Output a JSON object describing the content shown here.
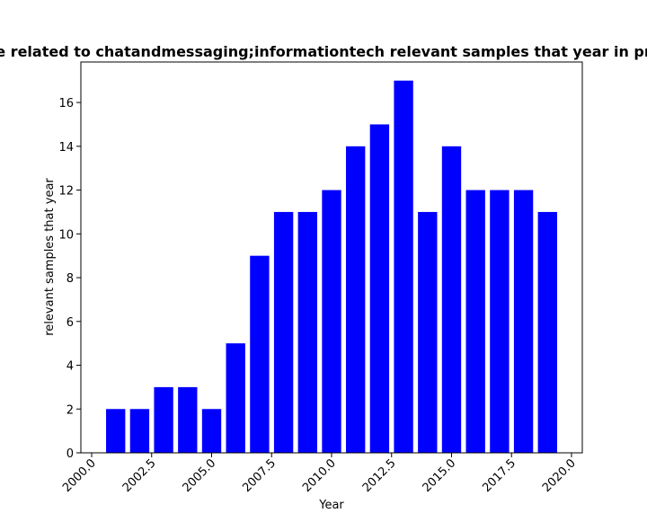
{
  "chart_data": {
    "type": "bar",
    "title": "e related to chatandmessaging;informationtech relevant samples that year in pr",
    "xlabel": "Year",
    "ylabel": "relevant samples that year",
    "x": [
      2001,
      2002,
      2003,
      2004,
      2005,
      2006,
      2007,
      2008,
      2009,
      2010,
      2011,
      2012,
      2013,
      2014,
      2015,
      2016,
      2017,
      2018,
      2019
    ],
    "values": [
      2,
      2,
      3,
      3,
      2,
      5,
      9,
      11,
      11,
      12,
      14,
      15,
      17,
      11,
      14,
      12,
      12,
      12,
      11
    ],
    "xlim": [
      1999.55,
      2020.45
    ],
    "ylim": [
      0,
      17.85
    ],
    "xticks": [
      2000.0,
      2002.5,
      2005.0,
      2007.5,
      2010.0,
      2012.5,
      2015.0,
      2017.5,
      2020.0
    ],
    "xtick_labels": [
      "2000.0",
      "2002.5",
      "2005.0",
      "2007.5",
      "2010.0",
      "2012.5",
      "2015.0",
      "2017.5",
      "2020.0"
    ],
    "yticks": [
      0,
      2,
      4,
      6,
      8,
      10,
      12,
      14,
      16
    ],
    "ytick_labels": [
      "0",
      "2",
      "4",
      "6",
      "8",
      "10",
      "12",
      "14",
      "16"
    ],
    "bar_width": 0.8,
    "bar_color": "#0000ff",
    "grid": false,
    "legend": false
  }
}
